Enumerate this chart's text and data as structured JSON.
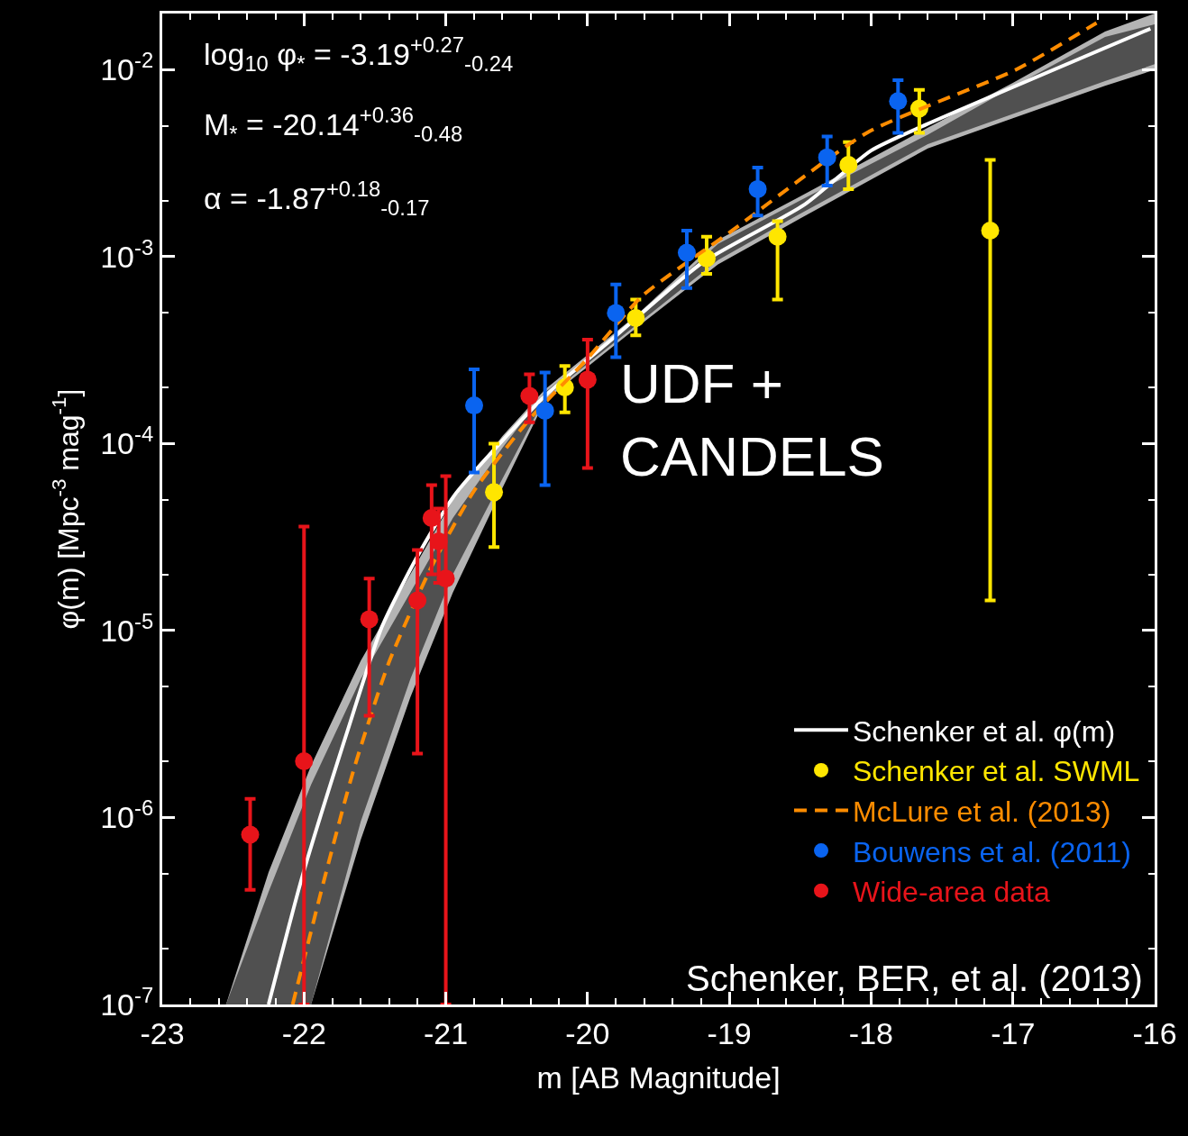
{
  "chart_data": {
    "type": "scatter",
    "xlabel": "m [AB Magnitude]",
    "ylabel": "φ(m) [Mpc$^{-3}$ mag$^{-1}$]",
    "xlim": [
      -23,
      -16
    ],
    "xticks": [
      -23,
      -22,
      -21,
      -20,
      -19,
      -18,
      -17,
      -16
    ],
    "ylim": [
      1e-07,
      0.02
    ],
    "log": "y",
    "yticks": [
      {
        "value": 1e-07,
        "label": "10$^{-7}$"
      },
      {
        "value": 1e-06,
        "label": "10$^{-6}$"
      },
      {
        "value": 1e-05,
        "label": "10$^{-5}$"
      },
      {
        "value": 0.0001,
        "label": "10$^{-4}$"
      },
      {
        "value": 0.001,
        "label": "10$^{-3}$"
      },
      {
        "value": 0.01,
        "label": "10$^{-2}$"
      }
    ],
    "grid": false,
    "legend": "bottom right",
    "marker": "circle",
    "series": [
      {
        "type": "line",
        "color": "#b4b4b4",
        "x": [
          -22.55,
          -22.25,
          -21.95,
          -21.6,
          -21.25,
          -20.95,
          -20.6,
          -20.3,
          -19.65,
          -19.08,
          -18.5,
          -17.6,
          -17.0,
          -16.35,
          -16.0
        ],
        "values": [
          null,
          null,
          null,
          null,
          null,
          null,
          null,
          null,
          null,
          null,
          null,
          null,
          null,
          null,
          null
        ],
        "lower": [
          1e-07,
          1e-07,
          1e-07,
          7.6e-07,
          4.4e-06,
          1.6e-05,
          5.8e-05,
          0.00017,
          0.00042,
          0.00091,
          0.0016,
          0.0038,
          0.0055,
          0.0082,
          0.01
        ],
        "upper": [
          1e-07,
          5.1e-07,
          1.9e-06,
          6.9e-06,
          2e-05,
          5e-05,
          0.00011,
          0.000195,
          0.00049,
          0.00123,
          0.0021,
          0.0049,
          0.0085,
          0.016,
          0.02
        ]
      },
      {
        "type": "line",
        "color": "#505050",
        "x": [
          -22.55,
          -22.25,
          -21.95,
          -21.6,
          -21.25,
          -20.95,
          -20.6,
          -20.3,
          -19.65,
          -19.08,
          -18.5,
          -17.6,
          -17.0,
          -16.35,
          -16.0
        ],
        "values": [
          null,
          null,
          null,
          null,
          null,
          null,
          null,
          null,
          null,
          null,
          null,
          null,
          null,
          null,
          null
        ],
        "lower": [
          1e-07,
          1e-07,
          1e-07,
          9.5e-07,
          5.5e-06,
          2e-05,
          6.5e-05,
          0.000176,
          0.000435,
          0.00096,
          0.0017,
          0.004,
          0.0058,
          0.0087,
          0.0107
        ],
        "upper": [
          1e-07,
          4e-07,
          1.5e-06,
          5.5e-06,
          1.6e-05,
          4e-05,
          9.5e-05,
          0.000188,
          0.000475,
          0.00117,
          0.002,
          0.0045,
          0.0081,
          0.015,
          0.0175
        ]
      },
      {
        "name": "Schenker et al. φ(m)",
        "type": "line",
        "color": "#ffffff",
        "line_style": "solid",
        "marker": "none",
        "x": [
          -22.25,
          -22.01,
          -21.7,
          -21.45,
          -21.2,
          -20.93,
          -20.3,
          -19.85,
          -19.19,
          -18.47,
          -18.0,
          -17.61,
          -16.03
        ],
        "values": [
          1e-07,
          4.9e-07,
          2.8e-06,
          1.05e-05,
          2.5e-05,
          5.4e-05,
          0.00018,
          0.00035,
          0.00093,
          0.0019,
          0.0037,
          0.0051,
          0.0166
        ]
      },
      {
        "name": "Schenker et al. SWML",
        "color": "#ffe600",
        "x": [
          -20.66,
          -20.16,
          -19.66,
          -19.16,
          -18.66,
          -18.16,
          -17.66,
          -17.16
        ],
        "values": [
          5.5e-05,
          0.0002,
          0.00047,
          0.00098,
          0.00128,
          0.0031,
          0.0062,
          0.00138
        ],
        "errors": [
          [
            2.8e-05,
            0.0001
          ],
          [
            0.000147,
            0.00026
          ],
          [
            0.00038,
            0.00059
          ],
          [
            0.00081,
            0.00128
          ],
          [
            0.00059,
            0.00155
          ],
          [
            0.0023,
            0.0041
          ],
          [
            0.0046,
            0.0078
          ],
          [
            1.45e-05,
            0.0033
          ]
        ]
      },
      {
        "name": "McLure et al. (2013)",
        "type": "line",
        "color": "#ff8c00",
        "line_style": "dashed",
        "marker": "none",
        "x": [
          -22.08,
          -21.85,
          -21.65,
          -21.4,
          -21.1,
          -20.8,
          -20.41,
          -20.01,
          -19.61,
          -18.98,
          -18.03,
          -16.98,
          -16.41
        ],
        "values": [
          1e-07,
          4.9e-07,
          1.8e-06,
          6.8e-06,
          2.2e-05,
          5.6e-05,
          0.000135,
          0.00028,
          0.00062,
          0.00138,
          0.0046,
          0.01,
          0.0178
        ]
      },
      {
        "name": "Bouwens et al. (2011)",
        "color": "#0a64f0",
        "x": [
          -20.8,
          -20.3,
          -19.8,
          -19.3,
          -18.8,
          -18.31,
          -17.81
        ],
        "values": [
          0.00016,
          0.00015,
          0.0005,
          0.00105,
          0.0023,
          0.0034,
          0.0068
        ],
        "errors": [
          [
            7e-05,
            0.00025
          ],
          [
            6e-05,
            0.00024
          ],
          [
            0.00029,
            0.00071
          ],
          [
            0.00068,
            0.00138
          ],
          [
            0.00166,
            0.003
          ],
          [
            0.0024,
            0.0044
          ],
          [
            0.0046,
            0.0088
          ]
        ]
      },
      {
        "name": "Wide-area data",
        "color": "#e8141a",
        "x": [
          -22.38,
          -22.0,
          -21.54,
          -21.2,
          -21.1,
          -21.05,
          -21.0,
          -20.41,
          -20.0
        ],
        "values": [
          8.1e-07,
          2e-06,
          1.15e-05,
          1.45e-05,
          4e-05,
          3e-05,
          1.9e-05,
          0.00018,
          0.00022
        ],
        "errors": [
          [
            4.1e-07,
            1.26e-06
          ],
          [
            1e-07,
            3.6e-05
          ],
          [
            3.5e-06,
            1.9e-05
          ],
          [
            2.2e-06,
            2.7e-05
          ],
          [
            2e-05,
            6e-05
          ],
          [
            1.8e-05,
            4.5e-05
          ],
          [
            1e-07,
            6.7e-05
          ],
          [
            0.00013,
            0.000235
          ],
          [
            7.4e-05,
            0.00036
          ]
        ]
      }
    ],
    "annotations": [
      "log$_{10}$ φ$_{*}$ = -3.19$^{+0.27}$$_{-0.24}$",
      "M$_{*}$ = -20.14$^{+0.36}$$_{-0.48}$",
      "α = -1.87$^{+0.18}$$_{-0.17}$",
      "UDF +\nCANDELS",
      "Schenker, BER, et al. (2013)"
    ]
  }
}
